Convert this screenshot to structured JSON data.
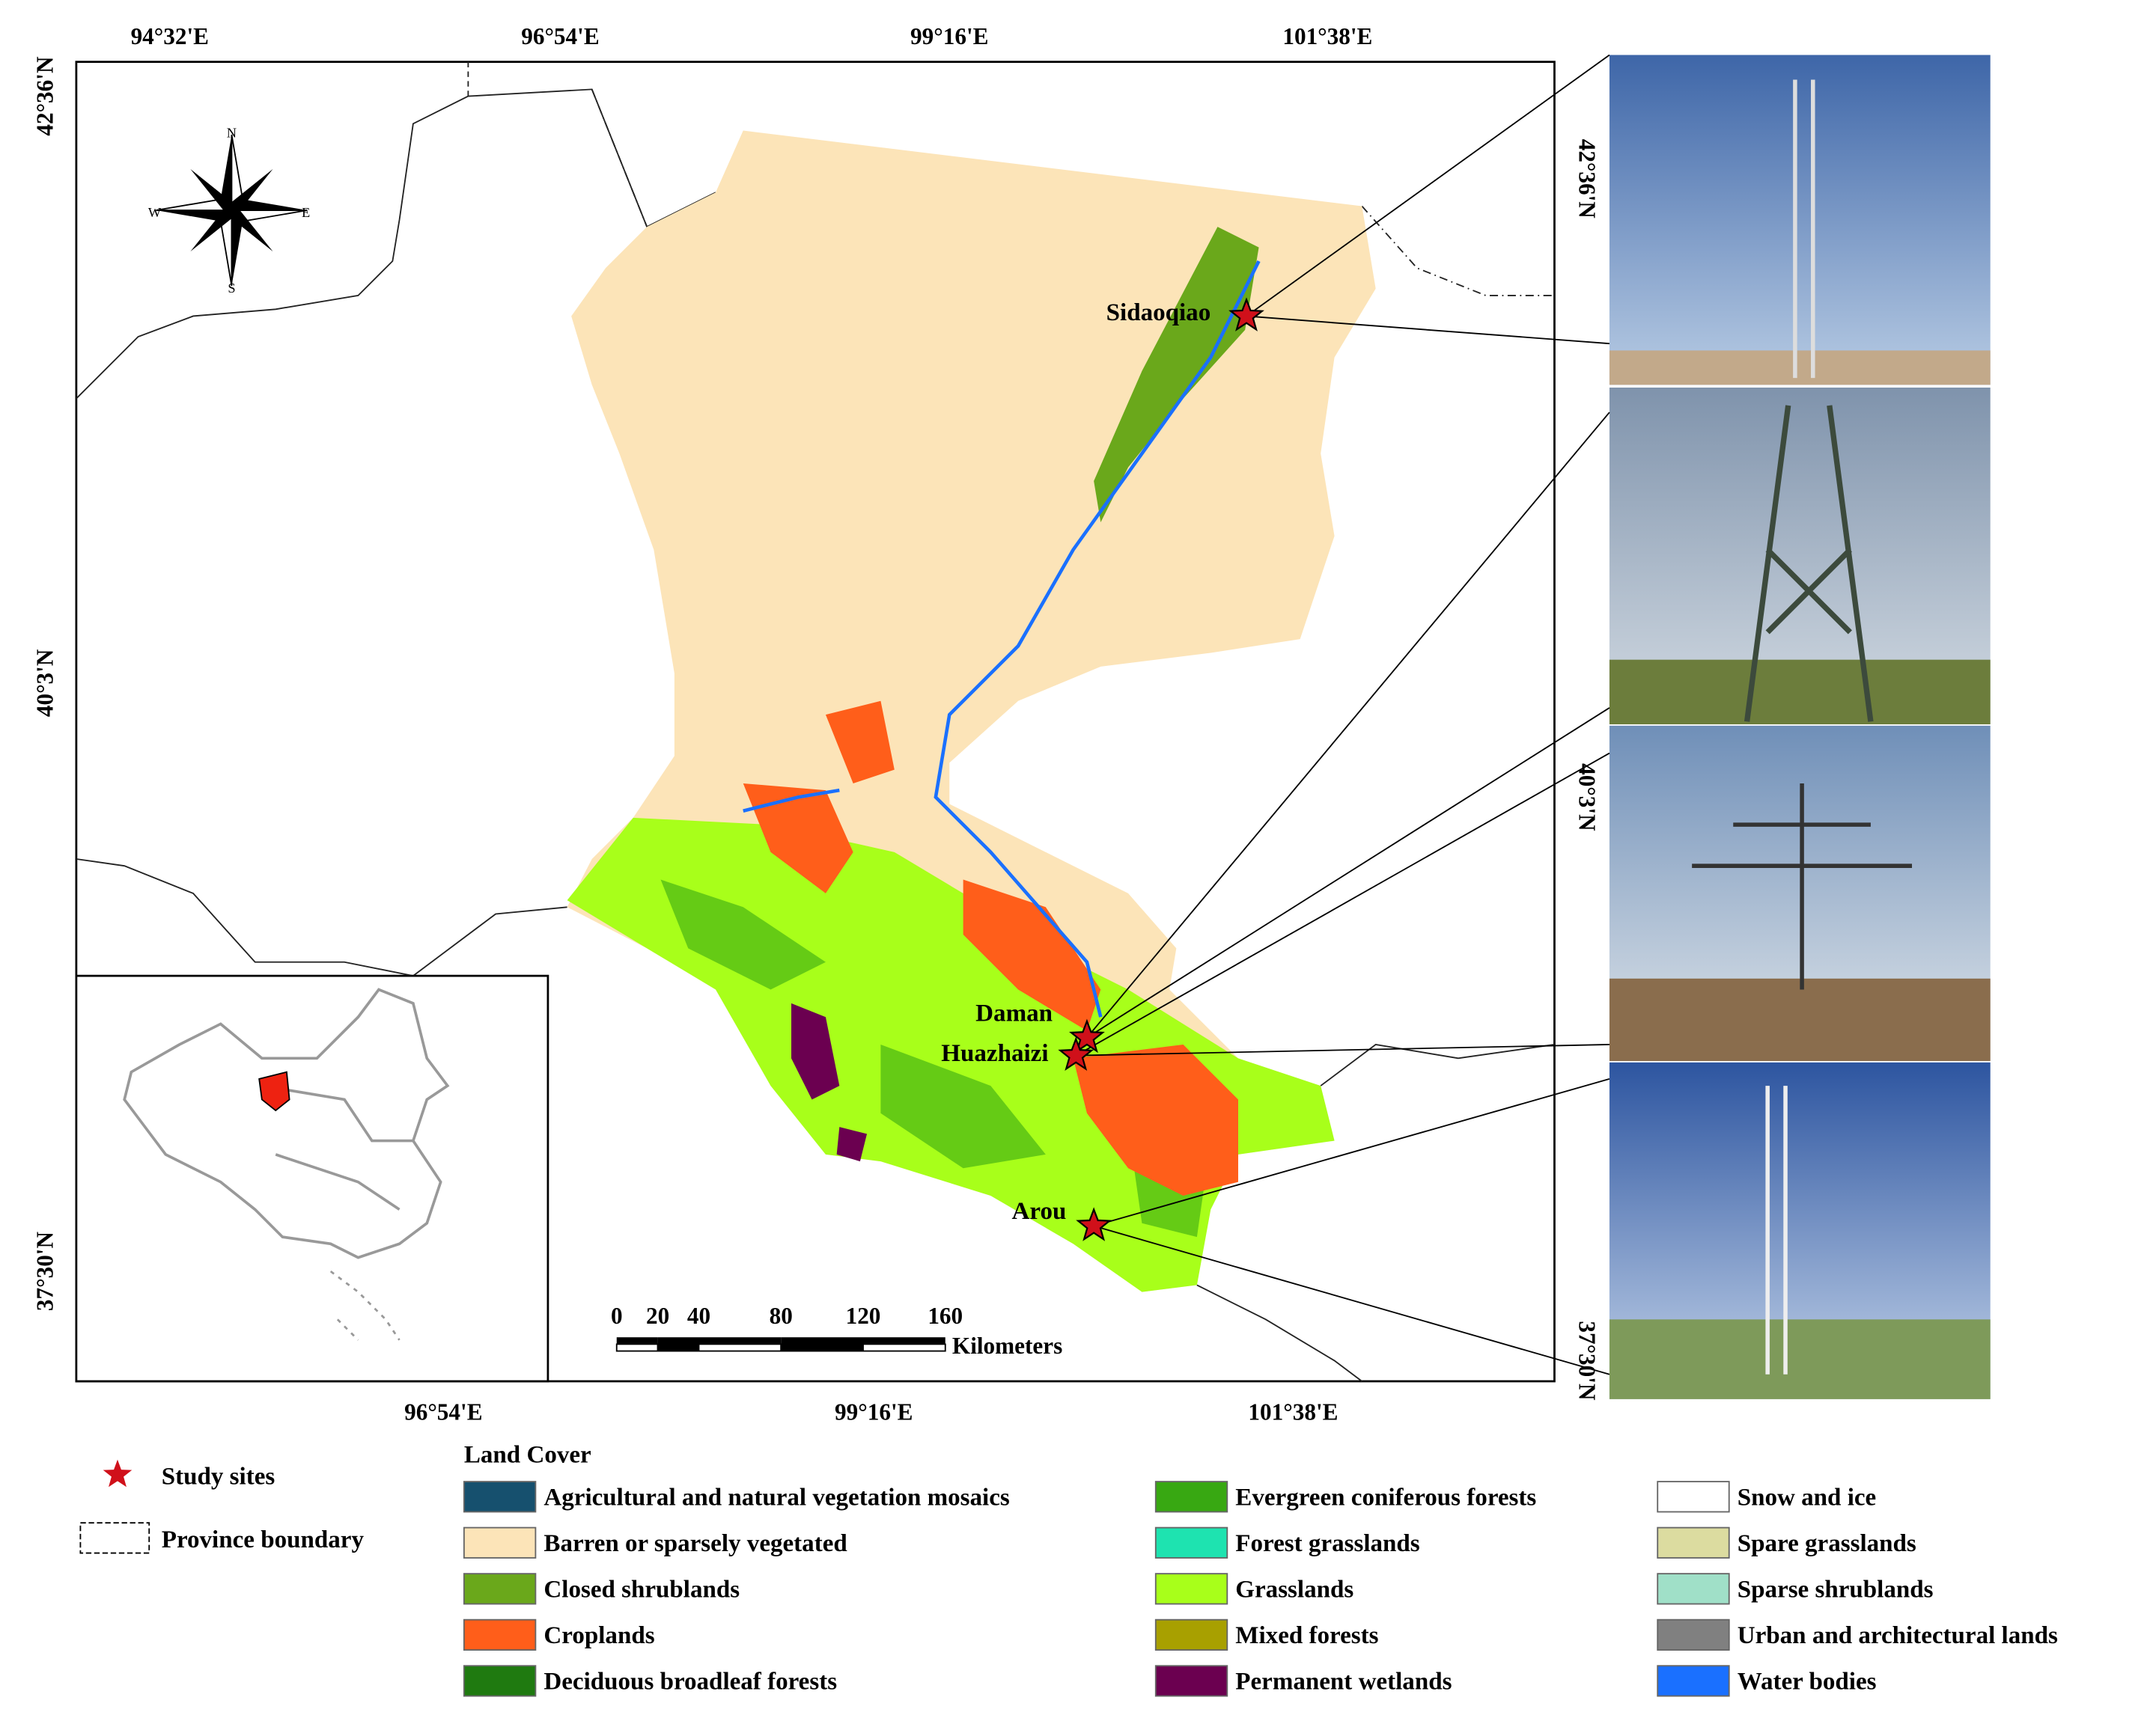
{
  "map": {
    "lon_labels_top": [
      "94°32'E",
      "96°54'E",
      "99°16'E",
      "101°38'E"
    ],
    "lon_labels_bottom": [
      "96°54'E",
      "99°16'E",
      "101°38'E"
    ],
    "lat_labels_left": [
      "42°36'N",
      "40°3'N",
      "37°30'N"
    ],
    "lat_labels_right": [
      "42°36'N",
      "40°3'N",
      "37°30'N"
    ],
    "compass": {
      "n": "N",
      "s": "S",
      "e": "E",
      "w": "W"
    },
    "sites": [
      "Sidaoqiao",
      "Daman",
      "Huazhaizi",
      "Arou"
    ],
    "scale_bar": {
      "ticks": [
        0,
        20,
        40,
        80,
        120,
        160
      ],
      "unit": "Kilometers"
    }
  },
  "legend": {
    "study_sites": "Study sites",
    "province_boundary": "Province boundary",
    "land_cover_title": "Land Cover",
    "classes": [
      {
        "name": "Agricultural and natural vegetation mosaics",
        "color": "#16506e"
      },
      {
        "name": "Barren or sparsely vegetated",
        "color": "#fce4b8"
      },
      {
        "name": "Closed shrublands",
        "color": "#6aa81b"
      },
      {
        "name": "Croplands",
        "color": "#ff5e1a"
      },
      {
        "name": "Deciduous broadleaf forests",
        "color": "#1f7a10"
      },
      {
        "name": "Evergreen coniferous forests",
        "color": "#38a812"
      },
      {
        "name": "Forest grasslands",
        "color": "#1ee3b0"
      },
      {
        "name": "Grasslands",
        "color": "#a8ff1a"
      },
      {
        "name": "Mixed forests",
        "color": "#a8a000"
      },
      {
        "name": "Permanent wetlands",
        "color": "#6b0050"
      },
      {
        "name": "Snow and ice",
        "color": "#ffffff"
      },
      {
        "name": "Spare grasslands",
        "color": "#dcdca0"
      },
      {
        "name": "Sparse shrublands",
        "color": "#a0e0c8"
      },
      {
        "name": "Urban and architectural lands",
        "color": "#808080"
      },
      {
        "name": "Water bodies",
        "color": "#1a70ff"
      }
    ]
  }
}
